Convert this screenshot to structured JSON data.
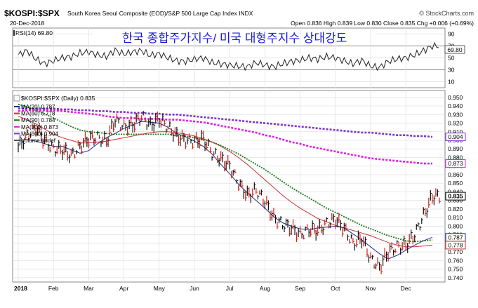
{
  "header": {
    "symbol": "$KOSPI:$SPX",
    "description": "South Korea Seoul Composite (EOD)/S&P 500 Large Cap Index  INDX",
    "brand": "© StockCharts.com",
    "date": "20-Dec-2018",
    "ohlc": "Open 0.836  High 0.839  Low 0.830  Close 0.835  Chg +0.006 (+0.69%)",
    "overlay_title": "한국 종합주가지수/ 미국 대형주지수 상대강도"
  },
  "rsi_panel": {
    "label": "RSI(14) 69.80",
    "ticks": [
      "90",
      "70",
      "50",
      "30",
      "10"
    ],
    "last_label": "69.80"
  },
  "legend": {
    "title": "$KOSPI:$SPX (Daily) 0.835",
    "items": [
      {
        "text": "MA(20) 0.787",
        "color": "#1f2f8c"
      },
      {
        "text": "MA(60) 0.778",
        "color": "#c83030"
      },
      {
        "text": "MA(90) 0.784",
        "color": "#1a7a1a"
      },
      {
        "text": "MA(300) 0.873",
        "color": "#e020e0"
      },
      {
        "text": "MA(600) 0.904",
        "color": "#8030d0"
      },
      {
        "text": "Volume undef",
        "color": "#555555"
      }
    ]
  },
  "price_ticks": [
    "0.950",
    "0.940",
    "0.930",
    "0.920",
    "0.910",
    "0.900",
    "0.890",
    "0.880",
    "0.870",
    "0.860",
    "0.850",
    "0.840",
    "0.830",
    "0.820",
    "0.810",
    "0.800",
    "0.790",
    "0.780",
    "0.770",
    "0.760",
    "0.750",
    "0.740"
  ],
  "last_value_labels": [
    {
      "text": "0.835"
    },
    {
      "text": "0.904"
    },
    {
      "text": "0.873"
    },
    {
      "text": "0.787"
    },
    {
      "text": "0.778"
    }
  ],
  "x_ticks": [
    "2018",
    "Feb",
    "Mar",
    "Apr",
    "May",
    "Jun",
    "Jul",
    "Aug",
    "Sep",
    "Oct",
    "Nov",
    "Dec"
  ],
  "colors": {
    "price": "#111111",
    "down": "#d0201a",
    "ma20": "#1f2f8c",
    "ma60": "#c83030",
    "ma90": "#1a7a1a",
    "ma300": "#e020e0",
    "ma600": "#8030d0",
    "title_text": "#1a1ae0",
    "grid": "#d4d4d4"
  },
  "chart_data": {
    "type": "line",
    "title": "$KOSPI:$SPX (Daily) 0.835",
    "ylim": [
      0.735,
      0.958
    ],
    "rsi_ylim": [
      0,
      100
    ],
    "x": [
      0,
      0.25,
      0.5,
      0.75,
      1,
      1.25,
      1.5,
      1.75,
      2,
      2.25,
      2.5,
      2.75,
      3,
      3.25,
      3.5,
      3.75,
      4,
      4.25,
      4.5,
      4.75,
      5,
      5.25,
      5.5,
      5.75,
      6,
      6.25,
      6.5,
      6.75,
      7,
      7.25,
      7.5,
      7.75,
      8,
      8.25,
      8.5,
      8.75,
      9,
      9.25,
      9.5,
      9.75,
      10,
      10.25,
      10.5,
      10.75,
      11,
      11.25,
      11.5,
      11.75
    ],
    "x_unit": "month index from Jan 2018",
    "series": [
      {
        "name": "$KOSPI:$SPX",
        "values": [
          0.892,
          0.905,
          0.915,
          0.899,
          0.89,
          0.889,
          0.882,
          0.893,
          0.902,
          0.903,
          0.899,
          0.924,
          0.915,
          0.918,
          0.928,
          0.917,
          0.925,
          0.915,
          0.905,
          0.9,
          0.899,
          0.902,
          0.885,
          0.878,
          0.87,
          0.85,
          0.836,
          0.842,
          0.829,
          0.81,
          0.802,
          0.798,
          0.79,
          0.796,
          0.795,
          0.803,
          0.808,
          0.797,
          0.78,
          0.786,
          0.762,
          0.752,
          0.77,
          0.776,
          0.778,
          0.79,
          0.812,
          0.835
        ]
      },
      {
        "name": "MA(20)",
        "values": [
          0.9,
          0.901,
          0.899,
          0.896,
          0.893,
          0.893,
          0.889,
          0.885,
          0.888,
          0.896,
          0.903,
          0.908,
          0.914,
          0.918,
          0.922,
          0.921,
          0.92,
          0.915,
          0.908,
          0.904,
          0.899,
          0.893,
          0.884,
          0.872,
          0.861,
          0.849,
          0.839,
          0.83,
          0.821,
          0.811,
          0.804,
          0.8,
          0.797,
          0.796,
          0.798,
          0.799,
          0.8,
          0.798,
          0.791,
          0.784,
          0.776,
          0.768,
          0.762,
          0.766,
          0.772,
          0.778,
          0.783,
          0.787
        ]
      },
      {
        "name": "MA(60)",
        "values": [
          0.928,
          0.924,
          0.919,
          0.913,
          0.907,
          0.903,
          0.9,
          0.897,
          0.897,
          0.898,
          0.899,
          0.901,
          0.903,
          0.905,
          0.907,
          0.909,
          0.91,
          0.91,
          0.909,
          0.907,
          0.905,
          0.902,
          0.898,
          0.893,
          0.887,
          0.88,
          0.872,
          0.863,
          0.854,
          0.845,
          0.836,
          0.828,
          0.821,
          0.815,
          0.809,
          0.805,
          0.801,
          0.798,
          0.795,
          0.792,
          0.789,
          0.785,
          0.781,
          0.778,
          0.776,
          0.776,
          0.777,
          0.778
        ]
      },
      {
        "name": "MA(90)",
        "values": [
          0.942,
          0.939,
          0.935,
          0.931,
          0.926,
          0.921,
          0.916,
          0.912,
          0.91,
          0.909,
          0.908,
          0.907,
          0.907,
          0.907,
          0.907,
          0.907,
          0.907,
          0.907,
          0.906,
          0.905,
          0.903,
          0.901,
          0.898,
          0.894,
          0.889,
          0.884,
          0.878,
          0.872,
          0.866,
          0.859,
          0.852,
          0.845,
          0.839,
          0.833,
          0.827,
          0.821,
          0.816,
          0.811,
          0.806,
          0.801,
          0.797,
          0.793,
          0.789,
          0.786,
          0.783,
          0.782,
          0.783,
          0.784
        ]
      },
      {
        "name": "MA(300)",
        "values": [
          0.934,
          0.935,
          0.935,
          0.935,
          0.935,
          0.934,
          0.933,
          0.932,
          0.931,
          0.93,
          0.928,
          0.927,
          0.926,
          0.926,
          0.925,
          0.925,
          0.925,
          0.924,
          0.924,
          0.923,
          0.922,
          0.921,
          0.919,
          0.917,
          0.915,
          0.913,
          0.911,
          0.909,
          0.906,
          0.904,
          0.901,
          0.898,
          0.896,
          0.893,
          0.891,
          0.889,
          0.887,
          0.885,
          0.883,
          0.881,
          0.879,
          0.878,
          0.877,
          0.876,
          0.875,
          0.874,
          0.873,
          0.873
        ]
      },
      {
        "name": "MA(600)",
        "values": [
          0.937,
          0.937,
          0.937,
          0.937,
          0.937,
          0.936,
          0.936,
          0.935,
          0.935,
          0.934,
          0.934,
          0.933,
          0.933,
          0.932,
          0.932,
          0.931,
          0.931,
          0.93,
          0.93,
          0.929,
          0.928,
          0.927,
          0.926,
          0.925,
          0.924,
          0.923,
          0.922,
          0.921,
          0.92,
          0.919,
          0.918,
          0.917,
          0.916,
          0.915,
          0.914,
          0.913,
          0.912,
          0.911,
          0.91,
          0.909,
          0.909,
          0.908,
          0.907,
          0.906,
          0.906,
          0.905,
          0.905,
          0.904
        ]
      },
      {
        "name": "RSI(14)",
        "values": [
          55,
          62,
          48,
          40,
          45,
          50,
          52,
          58,
          60,
          55,
          52,
          63,
          56,
          60,
          62,
          54,
          57,
          50,
          45,
          44,
          48,
          50,
          42,
          40,
          38,
          36,
          35,
          42,
          38,
          35,
          40,
          44,
          46,
          50,
          48,
          52,
          50,
          45,
          40,
          46,
          36,
          34,
          44,
          48,
          50,
          55,
          62,
          69.8
        ]
      }
    ]
  }
}
